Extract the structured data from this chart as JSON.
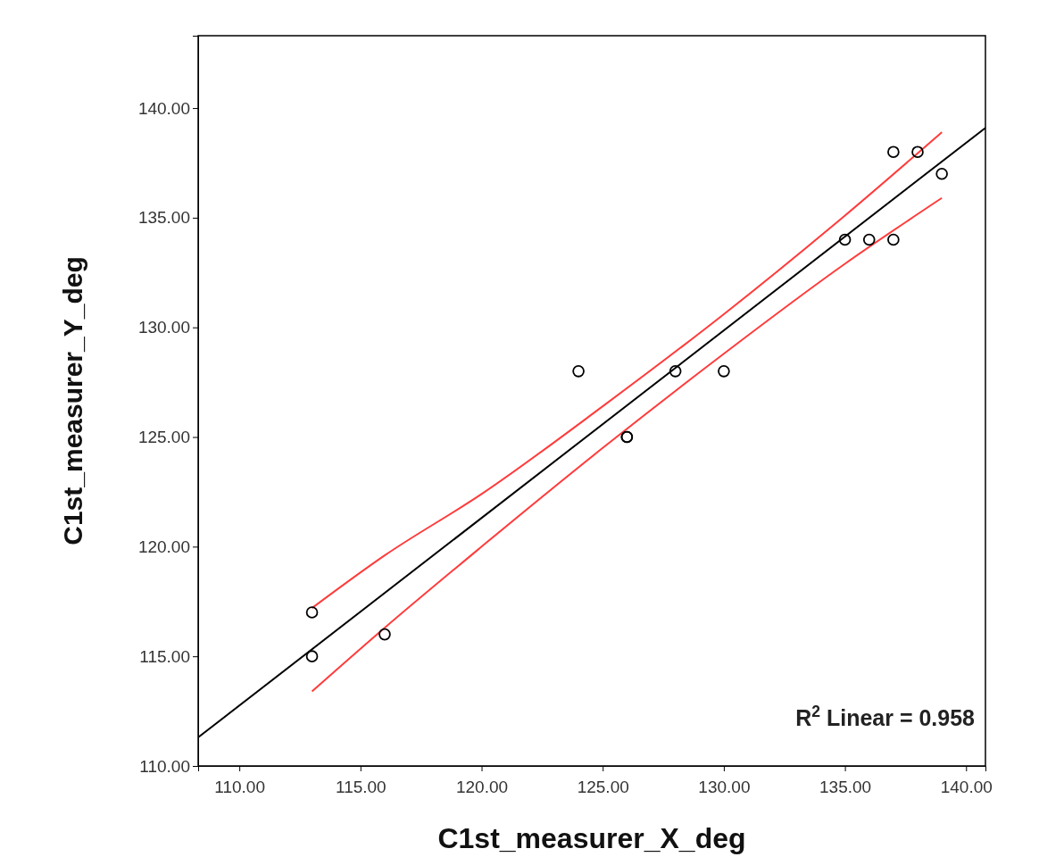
{
  "chart_data": {
    "type": "scatter",
    "xlabel": "C1st_measurer_X_deg",
    "ylabel": "C1st_measurer_Y_deg",
    "xlim": [
      108.3,
      140.8
    ],
    "ylim": [
      110,
      143.3
    ],
    "xticks": [
      {
        "value": 110,
        "label": "110.00"
      },
      {
        "value": 115,
        "label": "115.00"
      },
      {
        "value": 120,
        "label": "120.00"
      },
      {
        "value": 125,
        "label": "125.00"
      },
      {
        "value": 130,
        "label": "130.00"
      },
      {
        "value": 135,
        "label": "135.00"
      },
      {
        "value": 140,
        "label": "140.00"
      }
    ],
    "yticks": [
      {
        "value": 110,
        "label": "110.00"
      },
      {
        "value": 115,
        "label": "115.00"
      },
      {
        "value": 120,
        "label": "120.00"
      },
      {
        "value": 125,
        "label": "125.00"
      },
      {
        "value": 130,
        "label": "130.00"
      },
      {
        "value": 135,
        "label": "135.00"
      },
      {
        "value": 140,
        "label": "140.00"
      }
    ],
    "grid": false,
    "marker": "circle",
    "series": [
      {
        "color": "#000000",
        "x": [
          113,
          113,
          116,
          124,
          126,
          126,
          128,
          130,
          135,
          136,
          137,
          137,
          138,
          139
        ],
        "values": [
          117,
          115,
          116,
          128,
          125,
          125,
          128,
          128,
          134,
          134,
          134,
          138,
          138,
          137
        ]
      },
      {
        "type": "line",
        "color": "#000000",
        "marker": "none",
        "x": [
          108.3,
          140.8
        ],
        "values": [
          111.3,
          139.1
        ]
      },
      {
        "type": "line",
        "color": "#ff3b3b",
        "marker": "none",
        "x": [
          113,
          116,
          120,
          125,
          130,
          135,
          139
        ],
        "values": [
          117.2,
          119.6,
          122.4,
          126.4,
          130.6,
          135.1,
          138.9
        ]
      },
      {
        "type": "line",
        "color": "#ff3b3b",
        "marker": "none",
        "x": [
          113,
          116,
          120,
          125,
          130,
          135,
          139
        ],
        "values": [
          113.4,
          116.3,
          120,
          124.5,
          128.8,
          132.9,
          135.9
        ]
      }
    ],
    "annotations": [
      "R$^{2}$ Linear = 0.958"
    ]
  }
}
